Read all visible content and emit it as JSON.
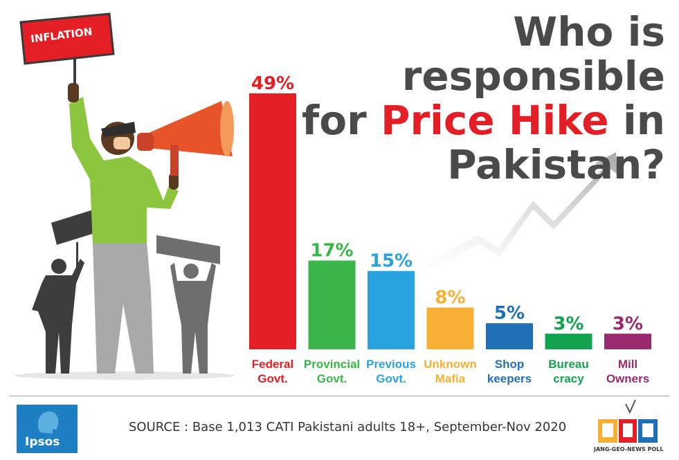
{
  "title": {
    "line1": "Who is responsible",
    "line2_prefix": "for ",
    "line2_highlight": "Price Hike",
    "line2_suffix": " in",
    "line3": "Pakistan?"
  },
  "illustration": {
    "sign_text": "INFLATION"
  },
  "source": "SOURCE : Base 1,013 CATI Pakistani adults 18+, September-Nov 2020",
  "logos": {
    "ipsos": "Ipsos",
    "jgn_caption": "JANG-GEO-NEWS POLL"
  },
  "chart_data": {
    "type": "bar",
    "title": "Who is responsible for Price Hike in Pakistan?",
    "categories": [
      [
        "Federal",
        "Govt."
      ],
      [
        "Provincial",
        "Govt."
      ],
      [
        "Previous",
        "Govt."
      ],
      [
        "Unknown",
        "Mafia"
      ],
      [
        "Shop",
        "keepers"
      ],
      [
        "Bureau",
        "cracy"
      ],
      [
        "Mill",
        "Owners"
      ]
    ],
    "values": [
      49,
      17,
      15,
      8,
      5,
      3,
      3
    ],
    "value_labels": [
      "49%",
      "17%",
      "15%",
      "8%",
      "5%",
      "3%",
      "3%"
    ],
    "unit": "%",
    "colors": [
      "#e31e24",
      "#3ab54a",
      "#29a3e0",
      "#f7b033",
      "#1f6fb7",
      "#12a34f",
      "#992a6e"
    ],
    "ylim": [
      0,
      49
    ],
    "grid": false,
    "legend": "none"
  }
}
